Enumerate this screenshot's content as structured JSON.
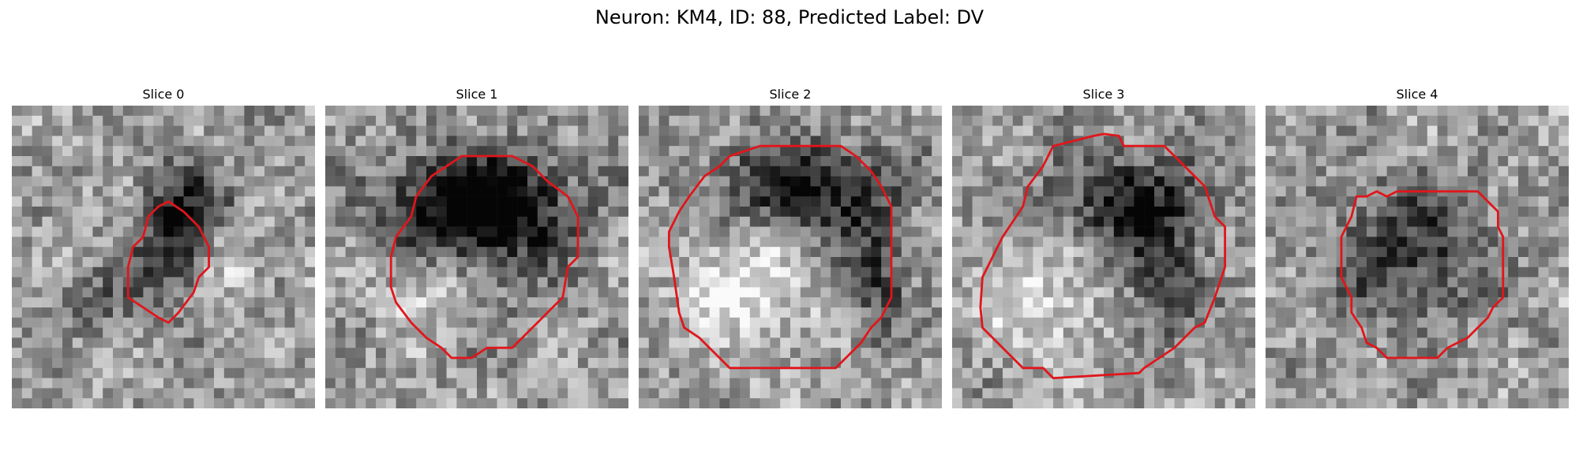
{
  "figure": {
    "title": "Neuron: KM4, ID: 88, Predicted Label: DV"
  },
  "panels": [
    {
      "title": "Slice 0"
    },
    {
      "title": "Slice 1"
    },
    {
      "title": "Slice 2"
    },
    {
      "title": "Slice 3"
    },
    {
      "title": "Slice 4"
    }
  ],
  "colors": {
    "contour": "#e0161b",
    "background": "#ffffff"
  }
}
